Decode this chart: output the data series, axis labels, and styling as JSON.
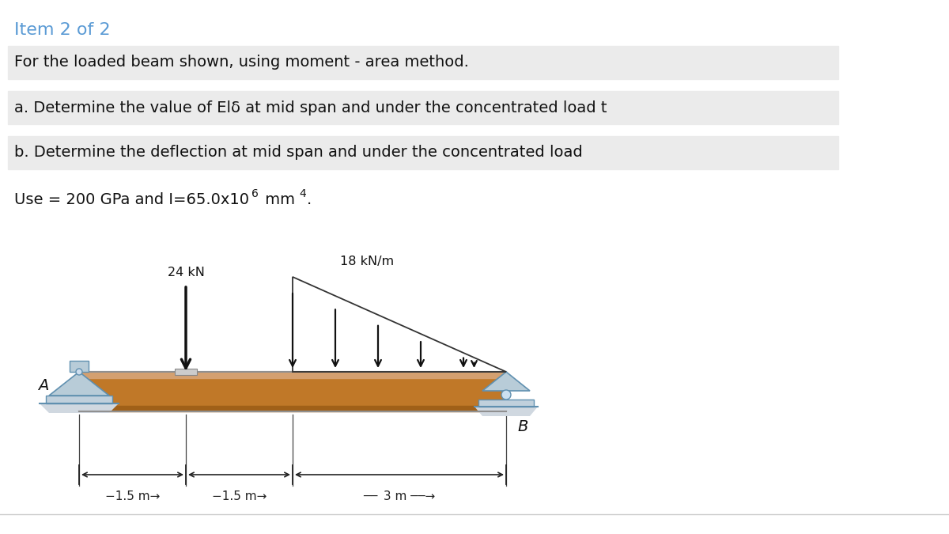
{
  "title_text": "Item 2 of 2",
  "title_color": "#5b9bd5",
  "bg_color": "#ffffff",
  "line1": "For the loaded beam shown, using moment - area method.",
  "line2": "a. Determine the value of Elδ at mid span and under the concentrated load t",
  "line3": "b. Determine the deflection at mid span and under the concentrated load",
  "line4_prefix": "Use = 200 GPa and I=65.0x10",
  "line4_suffix": " mm",
  "line4_exp": "6",
  "line4_exp4": "4",
  "line4_dot": ".",
  "highlight_color": "#ebebeb",
  "beam_fill": "#c07828",
  "beam_top_highlight": "#d4a070",
  "beam_bottom_shadow": "#a06018",
  "beam_edge": "#909090",
  "support_blue": "#8ab0c8",
  "support_fill": "#b8ccd8",
  "support_base": "#c0d0dc",
  "support_dark": "#6090b0",
  "arrow_color": "#111111",
  "dim_color": "#222222",
  "load_label_24": "24 kN",
  "load_label_18": "18 kN/m",
  "label_A": "A",
  "label_B": "B",
  "dim1": "−1.5 m→",
  "dim2": "−1.5 m→",
  "dim3": "−―――3 m ―――→",
  "fontsize_title": 16,
  "fontsize_body": 14,
  "fontsize_diagram": 11
}
